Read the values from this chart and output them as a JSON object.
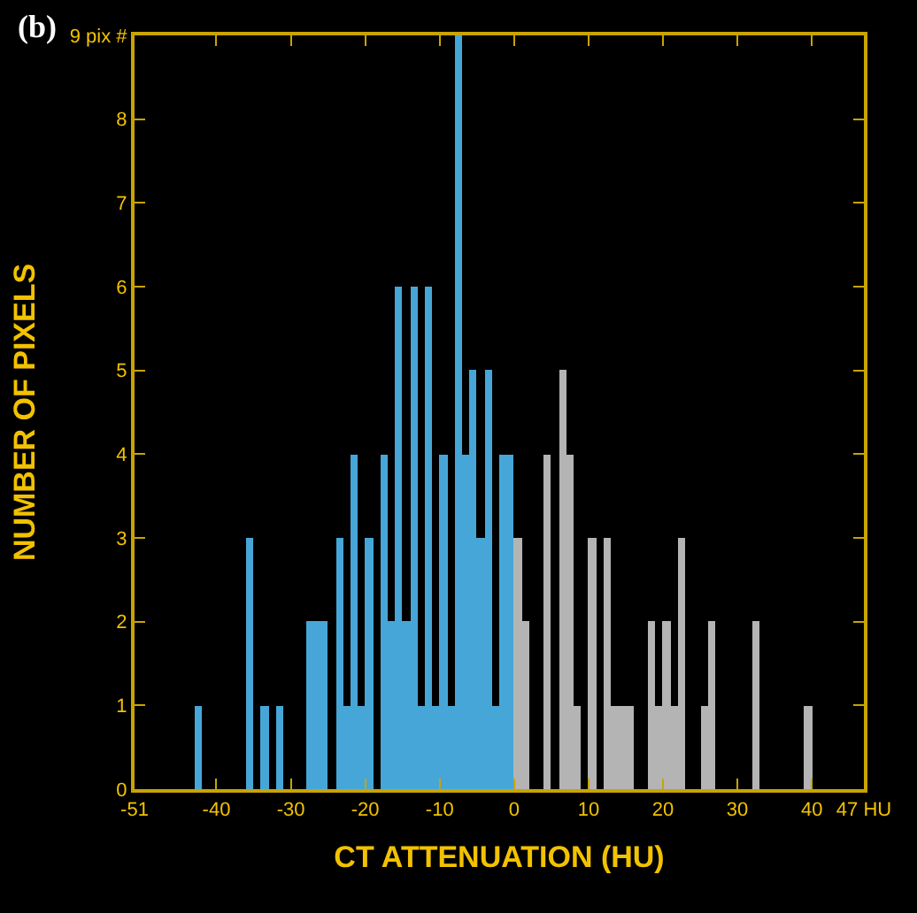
{
  "chart_data": {
    "type": "histogram",
    "xlabel": "CT ATTENUATION (HU)",
    "ylabel": "NUMBER OF PIXELS",
    "annotations": [
      "(b)"
    ],
    "bins": [
      -51,
      -50,
      -49,
      -48,
      -47,
      -46,
      -45,
      -44,
      -43,
      -42,
      -41,
      -40,
      -39,
      -38,
      -37,
      -36,
      -35,
      -34,
      -33,
      -32,
      -31,
      -30,
      -29,
      -28,
      -27,
      -26,
      -25,
      -24,
      -23,
      -22,
      -21,
      -20,
      -19,
      -18,
      -17,
      -16,
      -15,
      -14,
      -13,
      -12,
      -11,
      -10,
      -9,
      -8,
      -7,
      -6,
      -5,
      -4,
      -3,
      -2,
      -1,
      0,
      1,
      2,
      3,
      4,
      5,
      6,
      7,
      8,
      9,
      10,
      11,
      12,
      13,
      14,
      15,
      16,
      17,
      18,
      19,
      20,
      21,
      22,
      23,
      24,
      25,
      26,
      27,
      28,
      29,
      30,
      31,
      32,
      33,
      34,
      35,
      36,
      37,
      38,
      39,
      40,
      41,
      42,
      43,
      44,
      45,
      46,
      47
    ],
    "series": [
      {
        "color": "#47a6d8",
        "values": [
          0,
          0,
          0,
          0,
          0,
          0,
          0,
          0,
          1,
          0,
          0,
          0,
          0,
          0,
          0,
          3,
          0,
          1,
          0,
          1,
          0,
          0,
          0,
          2,
          2,
          2,
          0,
          3,
          1,
          4,
          1,
          3,
          0,
          4,
          2,
          6,
          2,
          6,
          1,
          6,
          1,
          4,
          1,
          9,
          4,
          5,
          3,
          5,
          1,
          4,
          4,
          0,
          0,
          0,
          0,
          0,
          0,
          0,
          0,
          0,
          0,
          0,
          0,
          0,
          0,
          0,
          0,
          0,
          0,
          0,
          0,
          0,
          0,
          0,
          0,
          0,
          0,
          0,
          0,
          0,
          0,
          0,
          0,
          0,
          0,
          0,
          0,
          0,
          0,
          0,
          0,
          0,
          0,
          0,
          0,
          0,
          0,
          0
        ]
      },
      {
        "color": "#b4b4b4",
        "values": [
          0,
          0,
          0,
          0,
          0,
          0,
          0,
          0,
          0,
          0,
          0,
          0,
          0,
          0,
          0,
          0,
          0,
          0,
          0,
          0,
          0,
          0,
          0,
          0,
          0,
          0,
          0,
          0,
          0,
          0,
          0,
          0,
          0,
          0,
          0,
          0,
          0,
          0,
          0,
          0,
          0,
          0,
          0,
          0,
          0,
          0,
          0,
          0,
          0,
          0,
          0,
          3,
          2,
          0,
          0,
          4,
          0,
          5,
          4,
          1,
          0,
          3,
          0,
          3,
          1,
          1,
          1,
          0,
          0,
          2,
          1,
          2,
          1,
          3,
          0,
          0,
          1,
          2,
          0,
          0,
          0,
          0,
          0,
          2,
          0,
          0,
          0,
          0,
          0,
          0,
          1,
          0,
          0,
          0,
          0,
          0,
          0,
          0
        ]
      }
    ],
    "xlim": [
      -51,
      47
    ],
    "xticks": [
      -51,
      -40,
      -30,
      -20,
      -10,
      0,
      10,
      20,
      30,
      40,
      {
        "value": 47,
        "label": "47 HU"
      }
    ],
    "ylim": [
      0,
      9
    ],
    "yticks": [
      0,
      1,
      2,
      3,
      4,
      5,
      6,
      7,
      8,
      {
        "value": 9,
        "label": "9 pix #"
      }
    ],
    "grid": false
  }
}
